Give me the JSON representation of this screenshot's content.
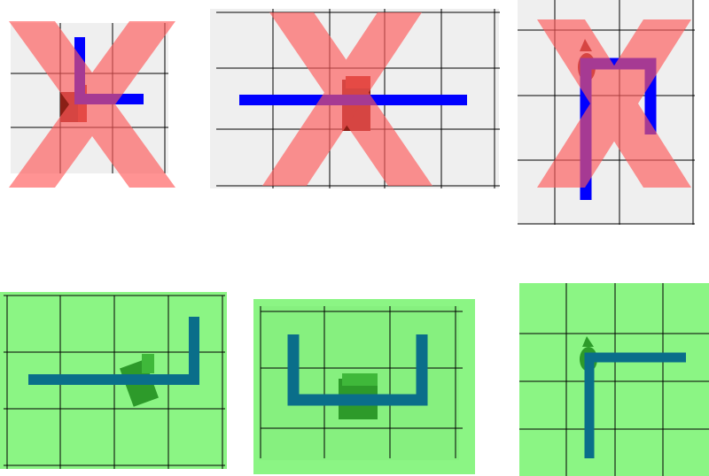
{
  "colors": {
    "bad_background": "#efefef",
    "good_background": "#8bf584",
    "good_inner": "#86f07f",
    "grid_line": "#000000",
    "bad_x": "#ff5a5a",
    "bad_path": "#0000ff",
    "good_path": "#0a6e8a",
    "bad_object": "#b72c1e",
    "good_object": "#2d9a2a"
  },
  "panels": [
    {
      "id": "bad-1",
      "result": "rejected",
      "icon": "x-mark-icon",
      "path_shape": "L-shape",
      "object": "gun"
    },
    {
      "id": "bad-2",
      "result": "rejected",
      "icon": "x-mark-icon",
      "path_shape": "straight-line",
      "object": "gun"
    },
    {
      "id": "bad-3",
      "result": "rejected",
      "icon": "x-mark-icon",
      "path_shape": "n-shape",
      "object": "figure"
    },
    {
      "id": "good-1",
      "result": "accepted",
      "path_shape": "J-shape",
      "object": "gun"
    },
    {
      "id": "good-2",
      "result": "accepted",
      "path_shape": "U-shape",
      "object": "gun"
    },
    {
      "id": "good-3",
      "result": "accepted",
      "path_shape": "L-shape",
      "object": "figure"
    }
  ]
}
